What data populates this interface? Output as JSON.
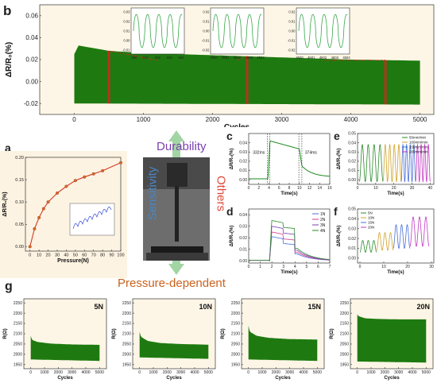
{
  "colors": {
    "green": "#1e7a10",
    "panel_bg": "#fdf6e6",
    "panel_a_bg": "#fdf3e2",
    "arrow_green": "#a3d4a3",
    "durability": "#7a3fb0",
    "sensitivity": "#4a86c5",
    "others": "#e04a3a",
    "pressure": "#c9621e",
    "red_marker": "#e02020"
  },
  "labels": {
    "b": "b",
    "a": "a",
    "c": "c",
    "d": "d",
    "e": "e",
    "f": "f",
    "g": "g",
    "durability": "Durability",
    "sensitivity": "Sensitivity",
    "others": "Others",
    "pressure_dependent": "Pressure-dependent"
  },
  "chart_data": [
    {
      "id": "b",
      "type": "area",
      "xlabel": "Cycles",
      "ylabel": "ΔR/R₀(%)",
      "xlim": [
        -500,
        5200
      ],
      "ylim": [
        -0.03,
        0.07
      ],
      "xticks": [
        "0",
        "1000",
        "2000",
        "3000",
        "4000",
        "5000"
      ],
      "yticks": [
        "-0.02",
        "0.00",
        "0.02",
        "0.04",
        "0.06"
      ],
      "envelope_upper": [
        [
          0,
          0.025
        ],
        [
          50,
          0.033
        ],
        [
          500,
          0.028
        ],
        [
          1000,
          0.026
        ],
        [
          2000,
          0.024
        ],
        [
          3000,
          0.022
        ],
        [
          4000,
          0.02
        ],
        [
          5000,
          0.019
        ]
      ],
      "envelope_lower": [
        [
          0,
          -0.02
        ],
        [
          5000,
          -0.021
        ]
      ],
      "markers": [
        500,
        2500,
        4500
      ],
      "insets": [
        {
          "xticks": [
            "500",
            "501",
            "502",
            "503",
            "504"
          ],
          "yticks": [
            "0.03",
            "0.02",
            "0.01",
            "0.00",
            "-0.01"
          ]
        },
        {
          "xticks": [
            "2500",
            "2501",
            "2502",
            "2503",
            "2504"
          ],
          "yticks": [
            "0.02",
            "0.01",
            "0.00",
            "-0.01",
            "-0.02"
          ]
        },
        {
          "xticks": [
            "4500",
            "4501",
            "4502",
            "4503",
            "4504"
          ],
          "yticks": [
            "0.02",
            "0.01",
            "0.00",
            "-0.01",
            "-0.02"
          ]
        }
      ]
    },
    {
      "id": "a",
      "type": "line",
      "xlabel": "Pressure(N)",
      "ylabel": "ΔR/R₀(%)",
      "xlim": [
        -5,
        100
      ],
      "ylim": [
        -0.01,
        0.2
      ],
      "xticks": [
        "0",
        "10",
        "20",
        "30",
        "40",
        "50",
        "60",
        "70",
        "80",
        "90",
        "100"
      ],
      "yticks": [
        "0.00",
        "0.05",
        "0.10",
        "0.15",
        "0.20"
      ],
      "x": [
        0,
        5,
        10,
        15,
        20,
        30,
        40,
        50,
        60,
        70,
        80,
        100
      ],
      "y": [
        0.0,
        0.04,
        0.065,
        0.085,
        0.1,
        0.12,
        0.135,
        0.148,
        0.156,
        0.163,
        0.17,
        0.188
      ]
    },
    {
      "id": "c",
      "type": "line",
      "xlabel": "Time(s)",
      "ylabel": "ΔR/R₀(%)",
      "xlim": [
        0,
        16
      ],
      "ylim": [
        -0.005,
        0.05
      ],
      "xticks": [
        "0",
        "2",
        "4",
        "6",
        "8",
        "10",
        "12",
        "14",
        "16"
      ],
      "yticks": [
        "0.00",
        "0.01",
        "0.02",
        "0.03",
        "0.04"
      ],
      "annotations": [
        "332ms",
        "374ms"
      ]
    },
    {
      "id": "d",
      "type": "line",
      "xlabel": "Time(s)",
      "ylabel": "ΔR/R₀(%)",
      "xlim": [
        0,
        7
      ],
      "ylim": [
        -0.002,
        0.045
      ],
      "xticks": [
        "0",
        "1",
        "2",
        "3",
        "4",
        "5",
        "6",
        "7"
      ],
      "yticks": [
        "0.00",
        "0.01",
        "0.02",
        "0.03",
        "0.04"
      ],
      "series": [
        {
          "name": "1N",
          "color": "#4a6fd6",
          "level": 0.017
        },
        {
          "name": "2N",
          "color": "#d23a8a",
          "level": 0.021
        },
        {
          "name": "3N",
          "color": "#7a3fb0",
          "level": 0.026
        },
        {
          "name": "4N",
          "color": "#2a8a2a",
          "level": 0.031
        }
      ]
    },
    {
      "id": "e",
      "type": "line",
      "xlabel": "Time(s)",
      "ylabel": "ΔR/R₀(%)",
      "xlim": [
        0,
        42
      ],
      "ylim": [
        -0.005,
        0.05
      ],
      "xticks": [
        "0",
        "10",
        "20",
        "30",
        "40"
      ],
      "yticks": [
        "0.00",
        "0.01",
        "0.02",
        "0.03",
        "0.04",
        "0.05"
      ],
      "series": [
        {
          "name": "50mm/min",
          "color": "#2a8a2a"
        },
        {
          "name": "100mm/min",
          "color": "#d2a32a"
        },
        {
          "name": "150mm/min",
          "color": "#4a6fd6"
        },
        {
          "name": "200mm/min",
          "color": "#c23ac2"
        }
      ]
    },
    {
      "id": "f",
      "type": "line",
      "xlabel": "Time(s)",
      "ylabel": "ΔR/R₀(%)",
      "xlim": [
        -1,
        31
      ],
      "ylim": [
        -0.005,
        0.05
      ],
      "xticks": [
        "0",
        "10",
        "20",
        "30"
      ],
      "yticks": [
        "0.00",
        "0.01",
        "0.02",
        "0.03",
        "0.04",
        "0.05"
      ],
      "series": [
        {
          "name": "5N",
          "color": "#2a8a2a"
        },
        {
          "name": "10N",
          "color": "#d2a32a"
        },
        {
          "name": "15N",
          "color": "#4a6fd6"
        },
        {
          "name": "20N",
          "color": "#c23ac2"
        }
      ]
    },
    {
      "id": "g1",
      "type": "area",
      "legend": "5N",
      "xlabel": "Cycles",
      "ylabel": "R(Ω)",
      "xlim": [
        -500,
        5500
      ],
      "ylim": [
        1930,
        2270
      ],
      "xticks": [
        "0",
        "1000",
        "2000",
        "3000",
        "4000",
        "5000"
      ],
      "yticks": [
        "1950",
        "2000",
        "2050",
        "2100",
        "2150",
        "2200",
        "2250"
      ],
      "upper": [
        [
          0,
          2090
        ],
        [
          100,
          2070
        ],
        [
          500,
          2060
        ],
        [
          1500,
          2052
        ],
        [
          3000,
          2048
        ],
        [
          5000,
          2046
        ]
      ],
      "lower": [
        [
          0,
          1975
        ],
        [
          5000,
          1968
        ]
      ]
    },
    {
      "id": "g2",
      "type": "area",
      "legend": "10N",
      "xlabel": "Cycles",
      "ylabel": "R(Ω)",
      "xlim": [
        -500,
        5500
      ],
      "ylim": [
        1930,
        2270
      ],
      "xticks": [
        "0",
        "1000",
        "2000",
        "3000",
        "4000",
        "5000"
      ],
      "yticks": [
        "1950",
        "2000",
        "2050",
        "2100",
        "2150",
        "2200",
        "2250"
      ],
      "upper": [
        [
          0,
          2110
        ],
        [
          100,
          2085
        ],
        [
          600,
          2065
        ],
        [
          1500,
          2055
        ],
        [
          3000,
          2050
        ],
        [
          5000,
          2047
        ]
      ],
      "lower": [
        [
          0,
          1985
        ],
        [
          5000,
          1978
        ]
      ]
    },
    {
      "id": "g3",
      "type": "area",
      "legend": "15N",
      "xlabel": "Cycles",
      "ylabel": "R(Ω)",
      "xlim": [
        -500,
        5500
      ],
      "ylim": [
        1930,
        2270
      ],
      "xticks": [
        "0",
        "1000",
        "2000",
        "3000",
        "4000",
        "5000"
      ],
      "yticks": [
        "1950",
        "2000",
        "2050",
        "2100",
        "2150",
        "2200",
        "2250"
      ],
      "upper": [
        [
          0,
          2140
        ],
        [
          100,
          2110
        ],
        [
          600,
          2090
        ],
        [
          1500,
          2080
        ],
        [
          3000,
          2074
        ],
        [
          5000,
          2072
        ]
      ],
      "lower": [
        [
          0,
          1975
        ],
        [
          5000,
          1968
        ]
      ]
    },
    {
      "id": "g4",
      "type": "area",
      "legend": "20N",
      "xlabel": "Cycles",
      "ylabel": "R(Ω)",
      "xlim": [
        -500,
        5500
      ],
      "ylim": [
        1930,
        2270
      ],
      "xticks": [
        "0",
        "1000",
        "2000",
        "3000",
        "4000",
        "5000"
      ],
      "yticks": [
        "1950",
        "2000",
        "2050",
        "2100",
        "2150",
        "2200",
        "2250"
      ],
      "upper": [
        [
          0,
          2195
        ],
        [
          100,
          2185
        ],
        [
          600,
          2175
        ],
        [
          1500,
          2172
        ],
        [
          3000,
          2170
        ],
        [
          5000,
          2170
        ]
      ],
      "lower": [
        [
          0,
          1965
        ],
        [
          5000,
          1960
        ]
      ]
    }
  ]
}
